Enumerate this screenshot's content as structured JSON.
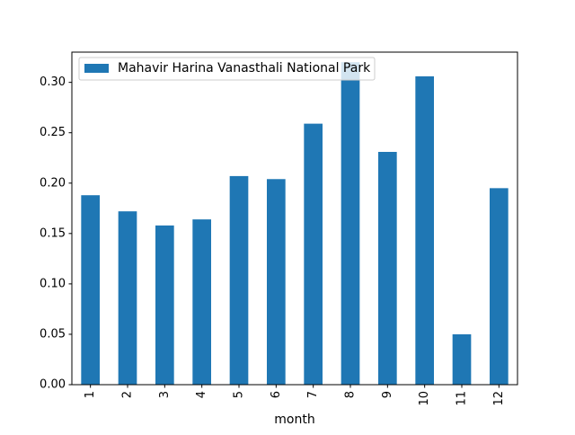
{
  "chart_data": {
    "type": "bar",
    "categories": [
      "1",
      "2",
      "3",
      "4",
      "5",
      "6",
      "7",
      "8",
      "9",
      "10",
      "11",
      "12"
    ],
    "series": [
      {
        "name": "Mahavir Harina Vanasthali National Park",
        "color": "#1f77b4",
        "values": [
          0.188,
          0.172,
          0.158,
          0.164,
          0.207,
          0.204,
          0.259,
          0.32,
          0.231,
          0.306,
          0.05,
          0.195
        ]
      }
    ],
    "xlabel": "month",
    "ylabel": "",
    "ylim": [
      0,
      0.33
    ],
    "yticks": [
      "0.00",
      "0.05",
      "0.10",
      "0.15",
      "0.20",
      "0.25",
      "0.30"
    ],
    "grid": false,
    "legend_position": "top-left",
    "xtick_rotation": 90
  }
}
